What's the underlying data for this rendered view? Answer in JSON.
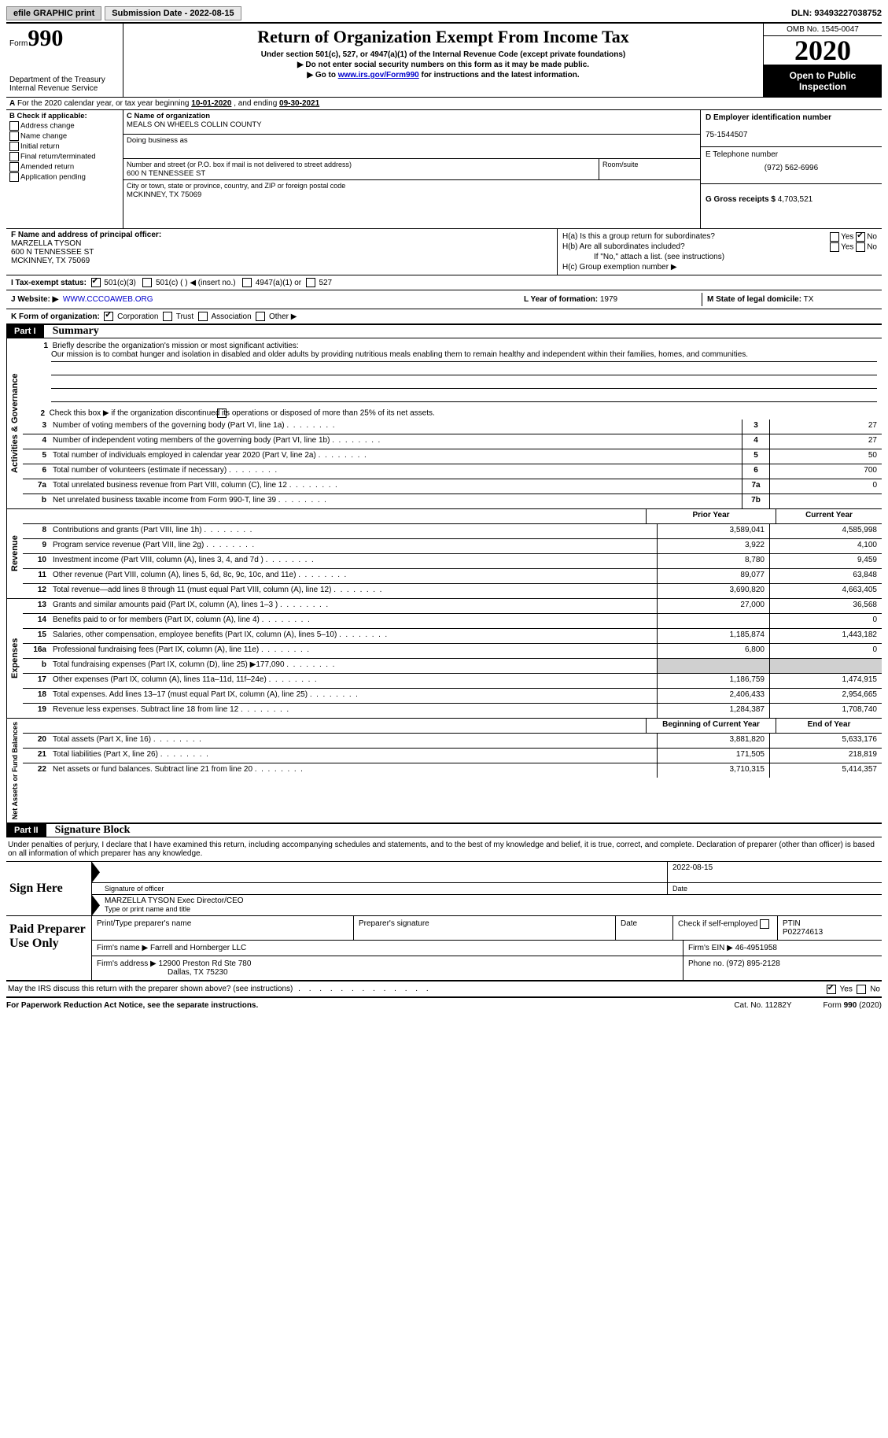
{
  "topbar": {
    "efile": "efile GRAPHIC print",
    "submission": "Submission Date - 2022-08-15",
    "dln_label": "DLN:",
    "dln": "93493227038752"
  },
  "header": {
    "form_prefix": "Form",
    "form_num": "990",
    "dept": "Department of the Treasury\nInternal Revenue Service",
    "title": "Return of Organization Exempt From Income Tax",
    "sub1": "Under section 501(c), 527, or 4947(a)(1) of the Internal Revenue Code (except private foundations)",
    "sub2": "Do not enter social security numbers on this form as it may be made public.",
    "sub3_pre": "Go to ",
    "sub3_link": "www.irs.gov/Form990",
    "sub3_post": " for instructions and the latest information.",
    "omb": "OMB No. 1545-0047",
    "year": "2020",
    "inspection": "Open to Public Inspection"
  },
  "lineA": {
    "label_a": "A",
    "text": "For the 2020 calendar year, or tax year beginning ",
    "begin": "10-01-2020",
    "mid": " , and ending ",
    "end": "09-30-2021"
  },
  "boxB": {
    "title": "B Check if applicable:",
    "items": [
      "Address change",
      "Name change",
      "Initial return",
      "Final return/terminated",
      "Amended return",
      "Application pending"
    ]
  },
  "boxC": {
    "name_label": "C Name of organization",
    "name": "MEALS ON WHEELS COLLIN COUNTY",
    "dba_label": "Doing business as",
    "addr_label": "Number and street (or P.O. box if mail is not delivered to street address)",
    "room_label": "Room/suite",
    "addr": "600 N TENNESSEE ST",
    "city_label": "City or town, state or province, country, and ZIP or foreign postal code",
    "city": "MCKINNEY, TX  75069"
  },
  "boxD": {
    "label": "D Employer identification number",
    "ein": "75-1544507"
  },
  "boxE": {
    "label": "E Telephone number",
    "phone": "(972) 562-6996"
  },
  "boxG": {
    "label": "G Gross receipts $",
    "val": "4,703,521"
  },
  "boxF": {
    "label": "F Name and address of principal officer:",
    "name": "MARZELLA TYSON",
    "addr1": "600 N TENNESSEE ST",
    "addr2": "MCKINNEY, TX  75069"
  },
  "boxH": {
    "ha": "H(a)  Is this a group return for subordinates?",
    "hb": "H(b)  Are all subordinates included?",
    "hb_note": "If \"No,\" attach a list. (see instructions)",
    "hc": "H(c)  Group exemption number ▶",
    "yes": "Yes",
    "no": "No"
  },
  "lineI": {
    "label": "I   Tax-exempt status:",
    "opts": [
      "501(c)(3)",
      "501(c) (  ) ◀ (insert no.)",
      "4947(a)(1) or",
      "527"
    ]
  },
  "lineJ": {
    "label": "J   Website: ▶",
    "val": "WWW.CCCOAWEB.ORG"
  },
  "lineK": {
    "label": "K Form of organization:",
    "opts": [
      "Corporation",
      "Trust",
      "Association",
      "Other ▶"
    ]
  },
  "lineL": {
    "label": "L Year of formation:",
    "val": "1979"
  },
  "lineM": {
    "label": "M State of legal domicile:",
    "val": "TX"
  },
  "part1": {
    "num": "Part I",
    "title": "Summary",
    "q1_label": "1",
    "q1a": "Briefly describe the organization's mission or most significant activities:",
    "q1b": "Our mission is to combat hunger and isolation in disabled and older adults by providing nutritious meals enabling them to remain healthy and independent within their families, homes, and communities.",
    "q2_num": "2",
    "q2": "Check this box ▶         if the organization discontinued its operations or disposed of more than 25% of its net assets.",
    "rows_gov": [
      {
        "n": "3",
        "d": "Number of voting members of the governing body (Part VI, line 1a)",
        "b": "3",
        "v": "27"
      },
      {
        "n": "4",
        "d": "Number of independent voting members of the governing body (Part VI, line 1b)",
        "b": "4",
        "v": "27"
      },
      {
        "n": "5",
        "d": "Total number of individuals employed in calendar year 2020 (Part V, line 2a)",
        "b": "5",
        "v": "50"
      },
      {
        "n": "6",
        "d": "Total number of volunteers (estimate if necessary)",
        "b": "6",
        "v": "700"
      },
      {
        "n": "7a",
        "d": "Total unrelated business revenue from Part VIII, column (C), line 12",
        "b": "7a",
        "v": "0"
      },
      {
        "n": "b",
        "d": "Net unrelated business taxable income from Form 990-T, line 39",
        "b": "7b",
        "v": ""
      }
    ],
    "col_prior": "Prior Year",
    "col_curr": "Current Year",
    "rows_rev": [
      {
        "n": "8",
        "d": "Contributions and grants (Part VIII, line 1h)",
        "p": "3,589,041",
        "c": "4,585,998"
      },
      {
        "n": "9",
        "d": "Program service revenue (Part VIII, line 2g)",
        "p": "3,922",
        "c": "4,100"
      },
      {
        "n": "10",
        "d": "Investment income (Part VIII, column (A), lines 3, 4, and 7d )",
        "p": "8,780",
        "c": "9,459"
      },
      {
        "n": "11",
        "d": "Other revenue (Part VIII, column (A), lines 5, 6d, 8c, 9c, 10c, and 11e)",
        "p": "89,077",
        "c": "63,848"
      },
      {
        "n": "12",
        "d": "Total revenue—add lines 8 through 11 (must equal Part VIII, column (A), line 12)",
        "p": "3,690,820",
        "c": "4,663,405"
      }
    ],
    "rows_exp": [
      {
        "n": "13",
        "d": "Grants and similar amounts paid (Part IX, column (A), lines 1–3 )",
        "p": "27,000",
        "c": "36,568"
      },
      {
        "n": "14",
        "d": "Benefits paid to or for members (Part IX, column (A), line 4)",
        "p": "",
        "c": "0"
      },
      {
        "n": "15",
        "d": "Salaries, other compensation, employee benefits (Part IX, column (A), lines 5–10)",
        "p": "1,185,874",
        "c": "1,443,182"
      },
      {
        "n": "16a",
        "d": "Professional fundraising fees (Part IX, column (A), line 11e)",
        "p": "6,800",
        "c": "0"
      },
      {
        "n": "b",
        "d": "Total fundraising expenses (Part IX, column (D), line 25) ▶177,090",
        "p": "SHADE",
        "c": "SHADE"
      },
      {
        "n": "17",
        "d": "Other expenses (Part IX, column (A), lines 11a–11d, 11f–24e)",
        "p": "1,186,759",
        "c": "1,474,915"
      },
      {
        "n": "18",
        "d": "Total expenses. Add lines 13–17 (must equal Part IX, column (A), line 25)",
        "p": "2,406,433",
        "c": "2,954,665"
      },
      {
        "n": "19",
        "d": "Revenue less expenses. Subtract line 18 from line 12",
        "p": "1,284,387",
        "c": "1,708,740"
      }
    ],
    "col_begin": "Beginning of Current Year",
    "col_end": "End of Year",
    "rows_net": [
      {
        "n": "20",
        "d": "Total assets (Part X, line 16)",
        "p": "3,881,820",
        "c": "5,633,176"
      },
      {
        "n": "21",
        "d": "Total liabilities (Part X, line 26)",
        "p": "171,505",
        "c": "218,819"
      },
      {
        "n": "22",
        "d": "Net assets or fund balances. Subtract line 21 from line 20",
        "p": "3,710,315",
        "c": "5,414,357"
      }
    ],
    "side_gov": "Activities & Governance",
    "side_rev": "Revenue",
    "side_exp": "Expenses",
    "side_net": "Net Assets or Fund Balances"
  },
  "part2": {
    "num": "Part II",
    "title": "Signature Block",
    "intro": "Under penalties of perjury, I declare that I have examined this return, including accompanying schedules and statements, and to the best of my knowledge and belief, it is true, correct, and complete. Declaration of preparer (other than officer) is based on all information of which preparer has any knowledge.",
    "sign_here": "Sign Here",
    "sig_officer": "Signature of officer",
    "sig_date": "2022-08-15",
    "date_lbl": "Date",
    "typed_name": "MARZELLA TYSON  Exec Director/CEO",
    "typed_lbl": "Type or print name and title",
    "paid_prep": "Paid Preparer Use Only",
    "pp_name_lbl": "Print/Type preparer's name",
    "pp_sig_lbl": "Preparer's signature",
    "pp_date_lbl": "Date",
    "pp_check_lbl": "Check         if self-employed",
    "pp_ptin_lbl": "PTIN",
    "pp_ptin": "P02274613",
    "firm_name_lbl": "Firm's name     ▶",
    "firm_name": "Farrell and Hornberger LLC",
    "firm_ein_lbl": "Firm's EIN ▶",
    "firm_ein": "46-4951958",
    "firm_addr_lbl": "Firm's address ▶",
    "firm_addr1": "12900 Preston Rd Ste 780",
    "firm_addr2": "Dallas, TX  75230",
    "firm_phone_lbl": "Phone no.",
    "firm_phone": "(972) 895-2128",
    "discuss": "May the IRS discuss this return with the preparer shown above? (see instructions)",
    "yes": "Yes",
    "no": "No"
  },
  "footer": {
    "left": "For Paperwork Reduction Act Notice, see the separate instructions.",
    "mid": "Cat. No. 11282Y",
    "right": "Form 990 (2020)"
  }
}
